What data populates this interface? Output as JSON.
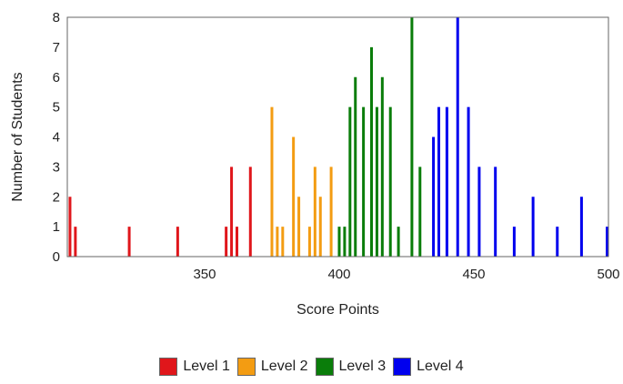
{
  "chart_data": {
    "type": "bar",
    "xlabel": "Score Points",
    "ylabel": "Number of Students",
    "xlim": [
      299,
      500
    ],
    "ylim": [
      0,
      8
    ],
    "x_ticks": [
      350,
      400,
      450,
      500
    ],
    "y_ticks": [
      0,
      1,
      2,
      3,
      4,
      5,
      6,
      7,
      8
    ],
    "legend_position": "bottom-center",
    "series": [
      {
        "name": "Level 1",
        "color": "#e0161b",
        "points": [
          [
            300,
            2
          ],
          [
            302,
            1
          ],
          [
            322,
            1
          ],
          [
            340,
            1
          ],
          [
            358,
            1
          ],
          [
            360,
            3
          ],
          [
            362,
            1
          ],
          [
            367,
            3
          ]
        ]
      },
      {
        "name": "Level 2",
        "color": "#f39c12",
        "points": [
          [
            375,
            5
          ],
          [
            377,
            1
          ],
          [
            379,
            1
          ],
          [
            383,
            4
          ],
          [
            385,
            2
          ],
          [
            389,
            1
          ],
          [
            391,
            3
          ],
          [
            393,
            2
          ],
          [
            397,
            3
          ]
        ]
      },
      {
        "name": "Level 3",
        "color": "#0a7d0a",
        "points": [
          [
            400,
            1
          ],
          [
            402,
            1
          ],
          [
            404,
            5
          ],
          [
            406,
            6
          ],
          [
            409,
            5
          ],
          [
            412,
            7
          ],
          [
            414,
            5
          ],
          [
            416,
            6
          ],
          [
            419,
            5
          ],
          [
            422,
            1
          ],
          [
            427,
            8
          ],
          [
            430,
            3
          ]
        ]
      },
      {
        "name": "Level 4",
        "color": "#0000ee",
        "points": [
          [
            435,
            4
          ],
          [
            437,
            5
          ],
          [
            440,
            5
          ],
          [
            444,
            8
          ],
          [
            448,
            5
          ],
          [
            452,
            3
          ],
          [
            458,
            3
          ],
          [
            465,
            1
          ],
          [
            472,
            2
          ],
          [
            481,
            1
          ],
          [
            490,
            2
          ],
          [
            500,
            1
          ]
        ]
      }
    ]
  }
}
